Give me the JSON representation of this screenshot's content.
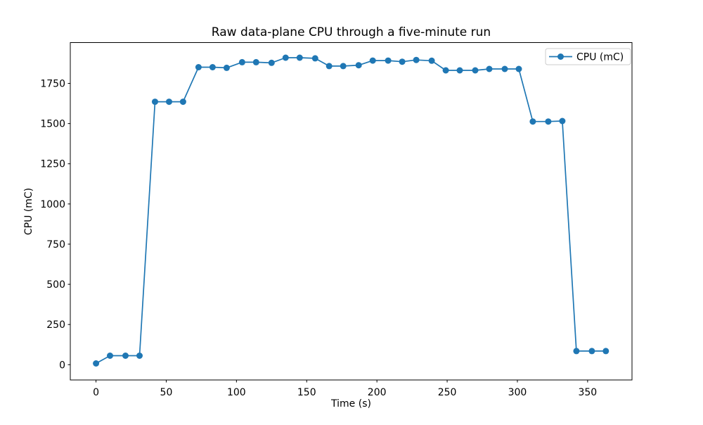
{
  "chart_data": {
    "type": "line",
    "title": "Raw data-plane CPU through a five-minute run",
    "xlabel": "Time (s)",
    "ylabel": "CPU (mC)",
    "grid": false,
    "legend": {
      "position": "upper right"
    },
    "x_ticks": [
      0,
      50,
      100,
      150,
      200,
      250,
      300,
      350
    ],
    "y_ticks": [
      0,
      250,
      500,
      750,
      1000,
      1250,
      1500,
      1750
    ],
    "xlim": [
      -18.3,
      381.6
    ],
    "ylim": [
      -95,
      2004
    ],
    "series": [
      {
        "name": "CPU (mC)",
        "color": "#1f77b4",
        "marker": "circle",
        "x": [
          0,
          10,
          21,
          31,
          42,
          52,
          62,
          73,
          83,
          93,
          104,
          114,
          125,
          135,
          145,
          156,
          166,
          176,
          187,
          197,
          208,
          218,
          228,
          239,
          249,
          259,
          270,
          280,
          291,
          301,
          311,
          322,
          332,
          342,
          353,
          363
        ],
        "y": [
          8,
          56,
          56,
          56,
          1636,
          1636,
          1636,
          1851,
          1851,
          1847,
          1882,
          1882,
          1878,
          1910,
          1910,
          1906,
          1858,
          1858,
          1863,
          1892,
          1892,
          1885,
          1896,
          1891,
          1831,
          1831,
          1831,
          1840,
          1840,
          1840,
          1513,
          1513,
          1516,
          85,
          85,
          85
        ]
      }
    ]
  },
  "colors": {
    "series": "#1f77b4",
    "spine": "#000000",
    "legend_border": "#cccccc",
    "background": "#ffffff"
  }
}
